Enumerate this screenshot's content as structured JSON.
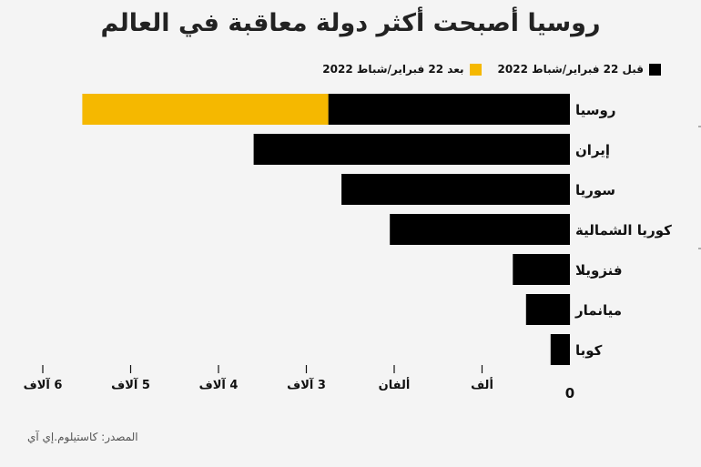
{
  "title": "روسيا أصبحت أكثر دولة معاقبة في العالم",
  "source": "المصدر: كاستيلوم.إي آي",
  "colors": {
    "before": "#000000",
    "after": "#f5b800"
  },
  "chart_data": {
    "type": "bar",
    "orientation": "horizontal",
    "stacked": true,
    "title": "روسيا أصبحت أكثر دولة معاقبة في العالم",
    "categories": [
      "روسيا",
      "إيران",
      "سوريا",
      "كوريا الشمالية",
      "فنزويلا",
      "ميانمار",
      "كوبا"
    ],
    "series": [
      {
        "name": "قبل 22 فبراير/شباط 2022",
        "values": [
          2750,
          3600,
          2600,
          2050,
          650,
          500,
          220
        ]
      },
      {
        "name": "بعد 22 فبراير/شباط 2022",
        "values": [
          2800,
          0,
          0,
          0,
          0,
          0,
          0
        ]
      }
    ],
    "xlim": [
      0,
      6000
    ],
    "x_ticks": [
      {
        "value": 0,
        "label": "0"
      },
      {
        "value": 1000,
        "label": "ألف"
      },
      {
        "value": 2000,
        "label": "ألفان"
      },
      {
        "value": 3000,
        "label": "3 آلاف"
      },
      {
        "value": 4000,
        "label": "4 آلاف"
      },
      {
        "value": 5000,
        "label": "5 آلاف"
      },
      {
        "value": 6000,
        "label": "6 آلاف"
      }
    ],
    "legend_position": "top-right",
    "axis_direction": "right-to-left",
    "grid": false
  }
}
